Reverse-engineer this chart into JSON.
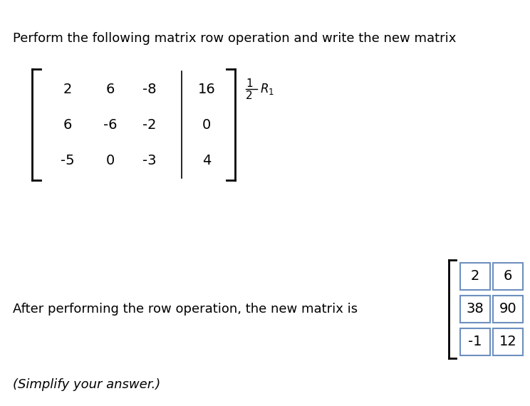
{
  "teal_color": "#29aac5",
  "white_color": "#ffffff",
  "light_gray_color": "#e8e8e8",
  "box_border_color": "#6e8fc0",
  "title_text": "Perform the following matrix row operation and write the new matrix",
  "matrix_rows": [
    [
      "2",
      "6",
      "-8",
      "16"
    ],
    [
      "6",
      "-6",
      "-2",
      "0"
    ],
    [
      "-5",
      "0",
      "-3",
      "4"
    ]
  ],
  "answer_text": "After performing the row operation, the new matrix is",
  "simplify_text": "(Simplify your answer.)",
  "answer_boxes": [
    [
      "2",
      "6"
    ],
    [
      "38",
      "90"
    ],
    [
      "-1",
      "12"
    ]
  ],
  "font_size_title": 13,
  "font_size_matrix": 14,
  "font_size_operation": 11,
  "font_size_answer": 13,
  "font_size_boxes": 14,
  "font_size_simplify": 13
}
